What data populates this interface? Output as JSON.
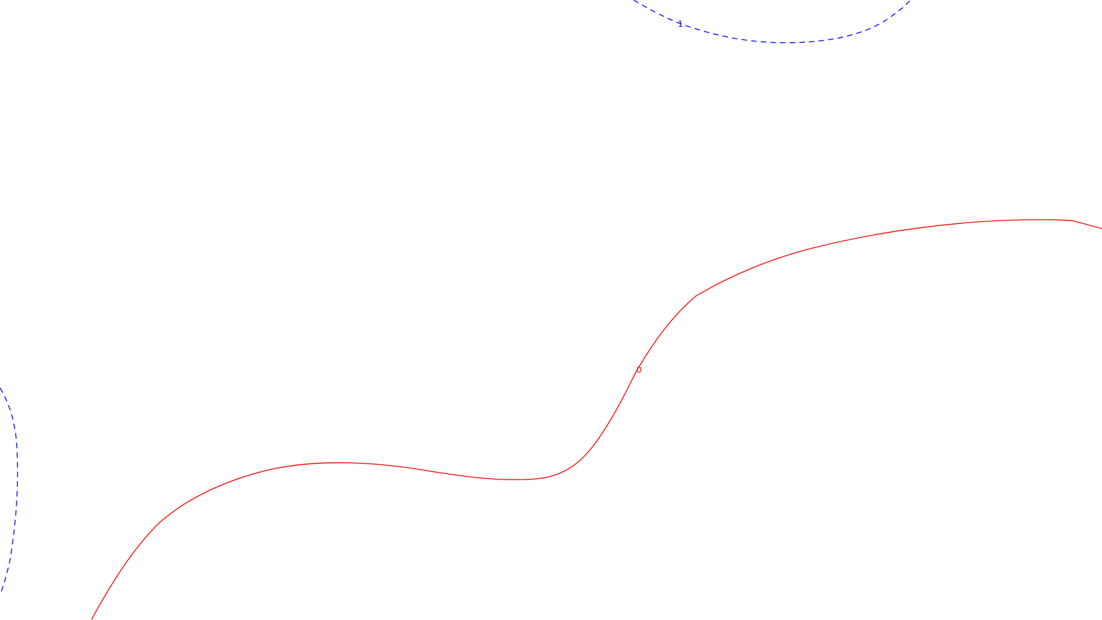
{
  "chart_data": {
    "type": "line",
    "title": "",
    "xlabel": "",
    "ylabel": "",
    "grid": false,
    "legend": "none",
    "series": [
      {
        "level_label": "0",
        "color": "#ff0000",
        "style": "solid"
      },
      {
        "level_label": "1",
        "color": "#0000ff",
        "style": "dashed"
      },
      {
        "level_label": "",
        "color": "#0000ff",
        "style": "dashed"
      }
    ]
  }
}
